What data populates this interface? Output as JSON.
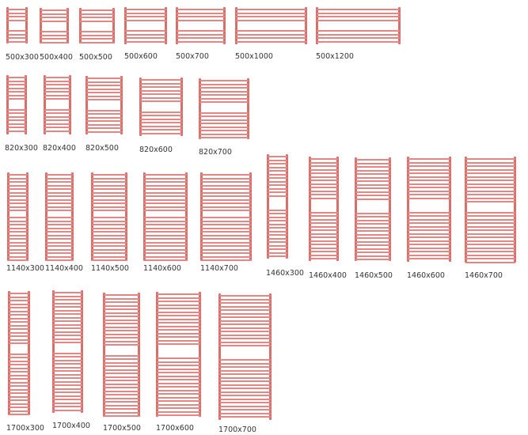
{
  "colors": {
    "bar": "#e58682",
    "post": "#d86f6a"
  },
  "items": [
    {
      "label": "500x300"
    },
    {
      "label": "500x400"
    },
    {
      "label": "500x500"
    },
    {
      "label": "500x600"
    },
    {
      "label": "500x700"
    },
    {
      "label": "500x1000"
    },
    {
      "label": "500x1200"
    },
    {
      "label": "820x300"
    },
    {
      "label": "820x400"
    },
    {
      "label": "820x500"
    },
    {
      "label": "820x600"
    },
    {
      "label": "820x700"
    },
    {
      "label": "1140x300"
    },
    {
      "label": "1140x400"
    },
    {
      "label": "1140x500"
    },
    {
      "label": "1140x600"
    },
    {
      "label": "1140x700"
    },
    {
      "label": "1460x300"
    },
    {
      "label": "1460x400"
    },
    {
      "label": "1460x500"
    },
    {
      "label": "1460x600"
    },
    {
      "label": "1460x700"
    },
    {
      "label": "1700x300"
    },
    {
      "label": "1700x400"
    },
    {
      "label": "1700x500"
    },
    {
      "label": "1700x600"
    },
    {
      "label": "1700x700"
    }
  ]
}
